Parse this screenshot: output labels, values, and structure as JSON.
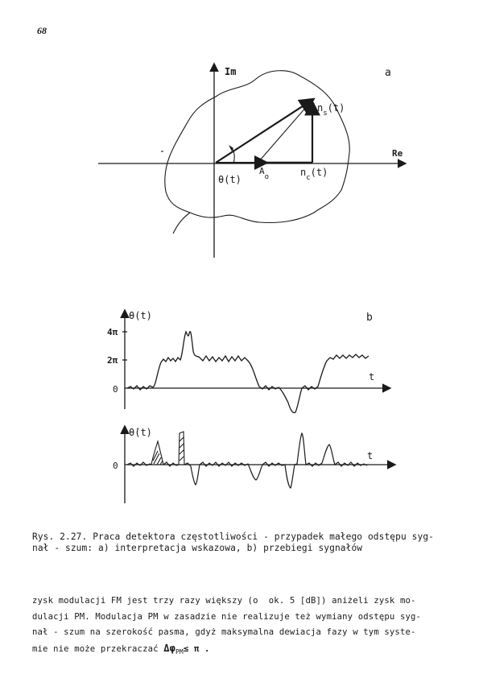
{
  "page_number": "68",
  "figure_a": {
    "panel_label": "a",
    "axis_im": "Im",
    "axis_re": "Re",
    "label_ns": "n",
    "label_ns_sub": "s",
    "label_ns_arg": "(t)",
    "label_nc": "n",
    "label_nc_sub": "c",
    "label_nc_arg": "(t)",
    "label_a": "A",
    "label_a_sub": "o",
    "label_theta": "θ(t)"
  },
  "figure_b": {
    "panel_label": "b",
    "top_ylabel": "θ(t)",
    "top_xlabel": "t",
    "tick_4pi": "4π",
    "tick_2pi": "2π",
    "tick_0": "0",
    "bottom_ylabel": "θ̇(t)",
    "bottom_xlabel": "t",
    "bottom_tick_0": "0"
  },
  "caption": {
    "line1": "Rys. 2.27. Praca detektora częstotliwości - przypadek małego odstępu syg-",
    "line2": "nał - szum: a) interpretacja wskazowa, b) przebiegi sygnałów"
  },
  "body": {
    "line1": "zysk modulacji FM jest trzy razy większy (o  ok. 5 [dB]) aniżeli zysk mo-",
    "line2": "dulacji PM. Modulacja PM w zasadzie nie realizuje też wymiany odstępu syg-",
    "line3": "nał - szum na szerokość pasma, gdyż maksymalna dewiacja fazy w tym syste-",
    "line4_text": "mie nie może przekraczać ",
    "line4_formula": "Δφ",
    "line4_sub": "PM",
    "line4_end": "≤ π ."
  }
}
